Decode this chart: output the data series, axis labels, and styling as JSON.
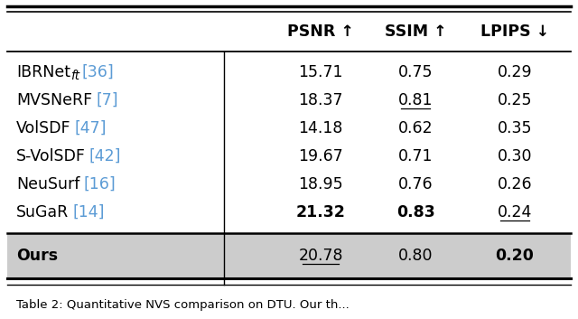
{
  "columns": [
    "",
    "PSNR ↑",
    "SSIM ↑",
    "LPIPS ↓"
  ],
  "rows": [
    {
      "name": "IBRNet",
      "subscript": "ft",
      "citation": "[36]",
      "psnr": "15.71",
      "ssim": "0.75",
      "lpips": "0.29",
      "bold_psnr": false,
      "bold_ssim": false,
      "bold_lpips": false,
      "under_psnr": false,
      "under_ssim": false,
      "under_lpips": false
    },
    {
      "name": "MVSNeRF",
      "subscript": "",
      "citation": "[7]",
      "psnr": "18.37",
      "ssim": "0.81",
      "lpips": "0.25",
      "bold_psnr": false,
      "bold_ssim": false,
      "bold_lpips": false,
      "under_psnr": false,
      "under_ssim": true,
      "under_lpips": false
    },
    {
      "name": "VolSDF",
      "subscript": "",
      "citation": "[47]",
      "psnr": "14.18",
      "ssim": "0.62",
      "lpips": "0.35",
      "bold_psnr": false,
      "bold_ssim": false,
      "bold_lpips": false,
      "under_psnr": false,
      "under_ssim": false,
      "under_lpips": false
    },
    {
      "name": "S-VolSDF",
      "subscript": "",
      "citation": "[42]",
      "psnr": "19.67",
      "ssim": "0.71",
      "lpips": "0.30",
      "bold_psnr": false,
      "bold_ssim": false,
      "bold_lpips": false,
      "under_psnr": false,
      "under_ssim": false,
      "under_lpips": false
    },
    {
      "name": "NeuSurf",
      "subscript": "",
      "citation": "[16]",
      "psnr": "18.95",
      "ssim": "0.76",
      "lpips": "0.26",
      "bold_psnr": false,
      "bold_ssim": false,
      "bold_lpips": false,
      "under_psnr": false,
      "under_ssim": false,
      "under_lpips": false
    },
    {
      "name": "SuGaR",
      "subscript": "",
      "citation": "[14]",
      "psnr": "21.32",
      "ssim": "0.83",
      "lpips": "0.24",
      "bold_psnr": true,
      "bold_ssim": true,
      "bold_lpips": false,
      "under_psnr": false,
      "under_ssim": false,
      "under_lpips": true
    }
  ],
  "ours": {
    "name": "Ours",
    "psnr": "20.78",
    "ssim": "0.80",
    "lpips": "0.20",
    "bold_psnr": false,
    "bold_ssim": false,
    "bold_lpips": true,
    "under_psnr": true,
    "under_ssim": false,
    "under_lpips": false
  },
  "bg_color": "#ffffff",
  "ours_bg_color": "#cccccc",
  "citation_color": "#5b9bd5",
  "header_fontsize": 12.5,
  "body_fontsize": 12.5,
  "caption_fontsize": 9.5,
  "caption_text": "Table 2: Quantitative NVS comparison on DTU. Our th..."
}
